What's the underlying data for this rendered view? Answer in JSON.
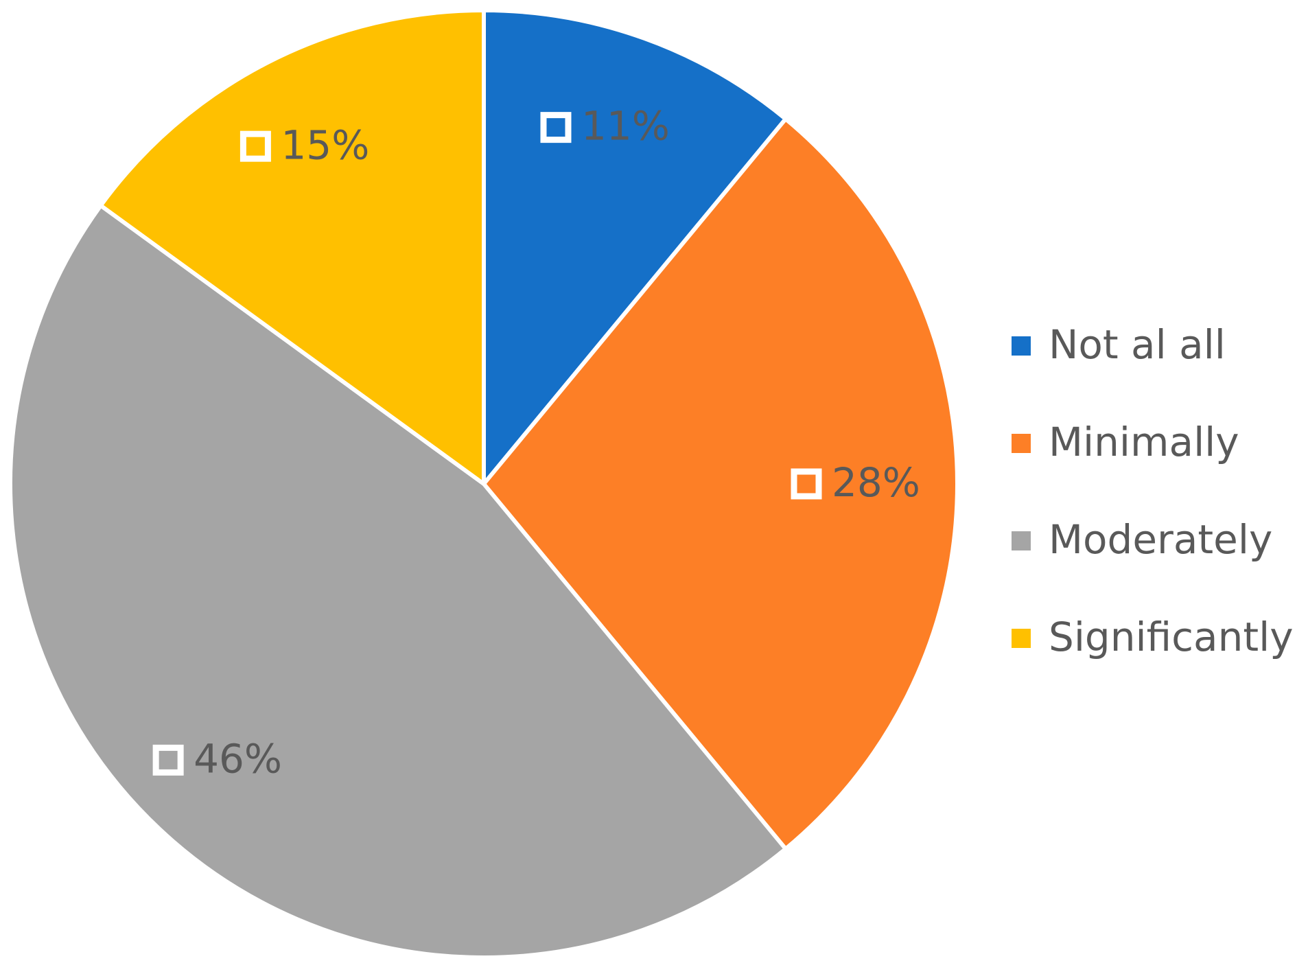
{
  "chart_data": {
    "type": "pie",
    "categories": [
      "Not al all",
      "Minimally",
      "Moderately",
      "Significantly"
    ],
    "values": [
      11,
      28,
      46,
      15
    ],
    "value_labels": [
      "11%",
      "28%",
      "46%",
      "15%"
    ],
    "colors": [
      "#1570c8",
      "#fd7f26",
      "#a5a5a5",
      "#ffc000"
    ],
    "legend": "right"
  }
}
